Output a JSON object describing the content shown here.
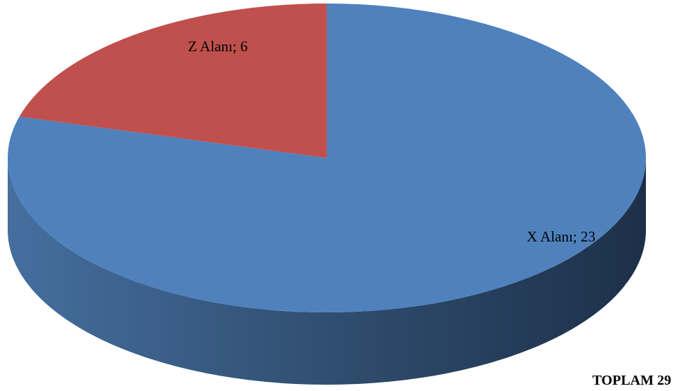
{
  "chart_data": {
    "type": "pie",
    "style": "3d",
    "slices": [
      {
        "label": "X Alanı; 23",
        "category": "X Alanı",
        "value": 23,
        "color": "#4f81bd"
      },
      {
        "label": "Z Alanı; 6",
        "category": "Z Alanı",
        "value": 6,
        "color": "#c0504d"
      }
    ]
  },
  "total_label": "TOPLAM 29"
}
